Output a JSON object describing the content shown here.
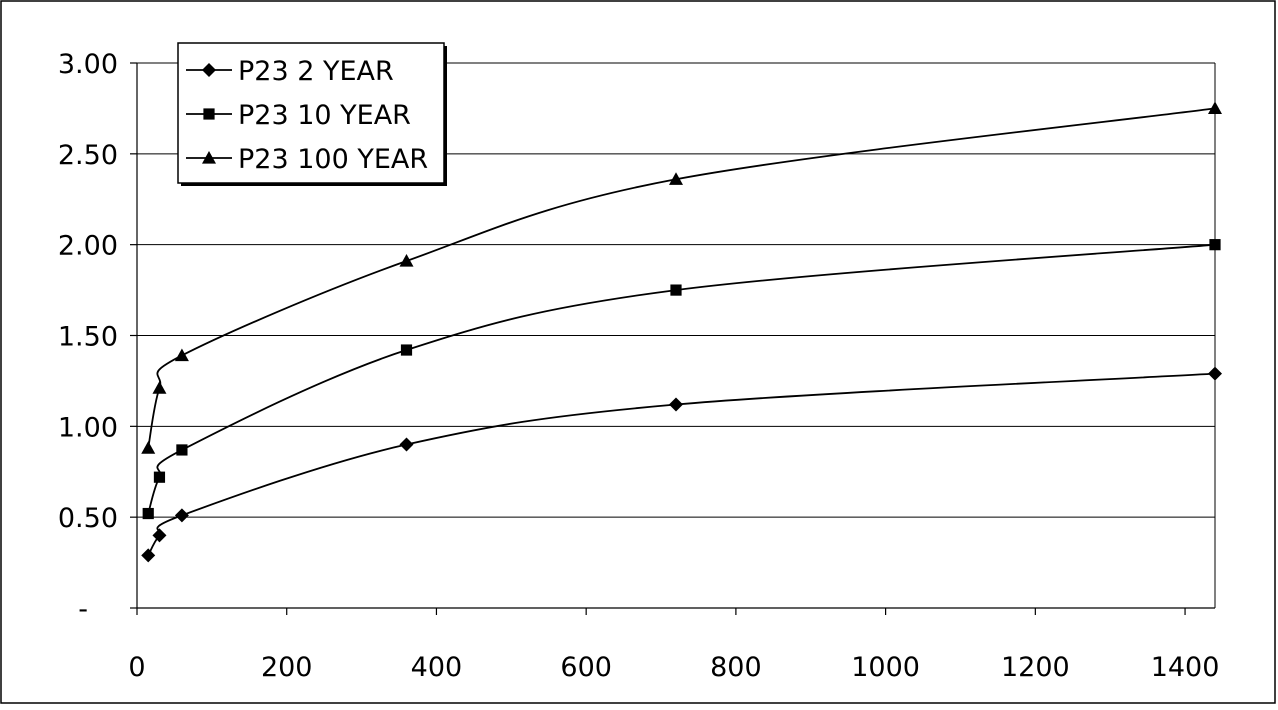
{
  "chart_data": {
    "type": "line",
    "title": "",
    "xlabel": "",
    "ylabel": "",
    "xlim": [
      0,
      1440
    ],
    "ylim": [
      0,
      3.0
    ],
    "x_ticks": [
      0,
      200,
      400,
      600,
      800,
      1000,
      1200,
      1400
    ],
    "x_tick_labels": [
      "0",
      "200",
      "400",
      "600",
      "800",
      "1000",
      "1200",
      "1400"
    ],
    "y_ticks": [
      0,
      0.5,
      1.0,
      1.5,
      2.0,
      2.5,
      3.0
    ],
    "y_tick_labels": [
      "-",
      "0.50",
      "1.00",
      "1.50",
      "2.00",
      "2.50",
      "3.00"
    ],
    "grid": "horizontal",
    "smooth": true,
    "legend_position": "top-left",
    "x": [
      15,
      30,
      60,
      360,
      720,
      1440
    ],
    "series": [
      {
        "name": "P23 2 YEAR",
        "marker": "diamond",
        "values": [
          0.29,
          0.4,
          0.51,
          0.9,
          1.12,
          1.29
        ]
      },
      {
        "name": "P23 10 YEAR",
        "marker": "square",
        "values": [
          0.52,
          0.72,
          0.87,
          1.42,
          1.75,
          2.0
        ]
      },
      {
        "name": "P23 100 YEAR",
        "marker": "triangle",
        "values": [
          0.88,
          1.21,
          1.39,
          1.91,
          2.36,
          2.75
        ]
      }
    ]
  }
}
